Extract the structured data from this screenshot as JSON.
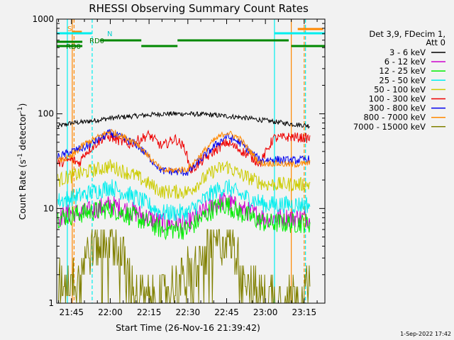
{
  "chart_data": {
    "type": "line",
    "title": "RHESSI Observing Summary Count Rates",
    "xlabel": "Start Time (26-Nov-16 21:39:42)",
    "ylabel": "Count Rate (s⁻¹ detector⁻¹)",
    "ylabel_main": "Count Rate (s",
    "ylabel_sup1": "-1",
    "ylabel_mid": " detector",
    "ylabel_sup2": "-1",
    "ylabel_end": ")",
    "yscale": "log",
    "ylim": [
      1,
      1000
    ],
    "xlim_minutes": [
      -5.7,
      98.0
    ],
    "xticks": [
      {
        "m": 0,
        "label": "21:45"
      },
      {
        "m": 15,
        "label": "22:00"
      },
      {
        "m": 30,
        "label": "22:15"
      },
      {
        "m": 45,
        "label": "22:30"
      },
      {
        "m": 60,
        "label": "22:45"
      },
      {
        "m": 75,
        "label": "23:00"
      },
      {
        "m": 90,
        "label": "23:15"
      }
    ],
    "yticks": [
      {
        "v": 1,
        "label": "1"
      },
      {
        "v": 10,
        "label": "10"
      },
      {
        "v": 100,
        "label": "100"
      },
      {
        "v": 1000,
        "label": "1000"
      }
    ],
    "legend_header": [
      "Det 3,9, FDecim 1,",
      "Att 0"
    ],
    "legend_position": "right",
    "series": [
      {
        "name": "3 - 6 keV",
        "color": "#000000",
        "points": [
          [
            -5,
            74
          ],
          [
            0,
            80
          ],
          [
            5,
            82
          ],
          [
            15,
            90
          ],
          [
            25,
            95
          ],
          [
            35,
            100
          ],
          [
            45,
            100
          ],
          [
            55,
            97
          ],
          [
            65,
            92
          ],
          [
            75,
            85
          ],
          [
            85,
            78
          ],
          [
            92,
            75
          ]
        ]
      },
      {
        "name": "6 - 12 keV",
        "color": "#cc00cc",
        "points": [
          [
            -5,
            8
          ],
          [
            0,
            9
          ],
          [
            5,
            9
          ],
          [
            15,
            11
          ],
          [
            25,
            9
          ],
          [
            35,
            7
          ],
          [
            45,
            7
          ],
          [
            55,
            11
          ],
          [
            60,
            12
          ],
          [
            65,
            10
          ],
          [
            75,
            8
          ],
          [
            92,
            8
          ]
        ]
      },
      {
        "name": "12 - 25 keV",
        "color": "#00ee00",
        "points": [
          [
            -5,
            8
          ],
          [
            0,
            8.5
          ],
          [
            5,
            9
          ],
          [
            15,
            10
          ],
          [
            25,
            8
          ],
          [
            35,
            6
          ],
          [
            45,
            6
          ],
          [
            55,
            10
          ],
          [
            60,
            11
          ],
          [
            65,
            9
          ],
          [
            75,
            7
          ],
          [
            92,
            7
          ]
        ]
      },
      {
        "name": "25 - 50 keV",
        "color": "#00eeee",
        "points": [
          [
            -5,
            12
          ],
          [
            0,
            13
          ],
          [
            5,
            14
          ],
          [
            15,
            17
          ],
          [
            25,
            13
          ],
          [
            35,
            9
          ],
          [
            45,
            9
          ],
          [
            55,
            15
          ],
          [
            60,
            17
          ],
          [
            65,
            14
          ],
          [
            75,
            11
          ],
          [
            92,
            11
          ]
        ]
      },
      {
        "name": "50 - 100 keV",
        "color": "#cccc00",
        "points": [
          [
            -5,
            20
          ],
          [
            0,
            22
          ],
          [
            5,
            24
          ],
          [
            15,
            28
          ],
          [
            25,
            22
          ],
          [
            35,
            15
          ],
          [
            45,
            15
          ],
          [
            55,
            25
          ],
          [
            60,
            28
          ],
          [
            65,
            23
          ],
          [
            75,
            18
          ],
          [
            92,
            18
          ]
        ]
      },
      {
        "name": "100 - 300 keV",
        "color": "#ee0000",
        "points": [
          [
            -5,
            30
          ],
          [
            0,
            33
          ],
          [
            3,
            30
          ],
          [
            5,
            38
          ],
          [
            12,
            55
          ],
          [
            15,
            57
          ],
          [
            22,
            47
          ],
          [
            30,
            60
          ],
          [
            35,
            45
          ],
          [
            40,
            55
          ],
          [
            44,
            43
          ],
          [
            46,
            25
          ],
          [
            55,
            40
          ],
          [
            60,
            50
          ],
          [
            65,
            42
          ],
          [
            73,
            30
          ],
          [
            78,
            55
          ],
          [
            85,
            57
          ],
          [
            92,
            55
          ]
        ]
      },
      {
        "name": "300 - 800 keV",
        "color": "#0000ee",
        "points": [
          [
            -5,
            35
          ],
          [
            0,
            40
          ],
          [
            5,
            44
          ],
          [
            15,
            63
          ],
          [
            25,
            48
          ],
          [
            35,
            25
          ],
          [
            45,
            24
          ],
          [
            55,
            45
          ],
          [
            60,
            58
          ],
          [
            65,
            50
          ],
          [
            73,
            32
          ],
          [
            78,
            33
          ],
          [
            85,
            32
          ],
          [
            92,
            33
          ]
        ]
      },
      {
        "name": "800 - 7000 keV",
        "color": "#ff8800",
        "points": [
          [
            -5,
            32
          ],
          [
            0,
            35
          ],
          [
            5,
            48
          ],
          [
            15,
            66
          ],
          [
            25,
            50
          ],
          [
            35,
            25
          ],
          [
            45,
            26
          ],
          [
            55,
            52
          ],
          [
            60,
            64
          ],
          [
            65,
            55
          ],
          [
            73,
            30
          ],
          [
            78,
            30
          ],
          [
            85,
            29
          ],
          [
            92,
            30
          ]
        ]
      },
      {
        "name": "7000 - 15000 keV",
        "color": "#808000",
        "points": [
          [
            -5,
            1.6
          ],
          [
            0,
            1.8
          ],
          [
            5,
            3
          ],
          [
            10,
            4.5
          ],
          [
            15,
            5
          ],
          [
            20,
            3
          ],
          [
            25,
            1.2
          ],
          [
            35,
            1.2
          ],
          [
            45,
            2
          ],
          [
            55,
            4
          ],
          [
            60,
            5
          ],
          [
            65,
            3
          ],
          [
            70,
            1.4
          ],
          [
            80,
            1.2
          ],
          [
            92,
            1.3
          ]
        ]
      }
    ],
    "flag_lines": [
      {
        "label": "S",
        "color": "#ff8800",
        "segments": [
          [
            0.3,
            4.0
          ]
        ],
        "vlines": [
          0.3,
          1.0,
          85.0,
          90.0
        ],
        "dashed": [
          1.0,
          90.0
        ]
      },
      {
        "label": "N",
        "color": "#00eeee",
        "segments": [
          [
            -5.7,
            7.8
          ],
          [
            78.5,
            98.0
          ]
        ],
        "vlines": [
          -1.6,
          8.0,
          78.5,
          90.5
        ],
        "dashed": [
          8.0,
          90.5
        ]
      },
      {
        "label": "RD0",
        "color": "#008800",
        "segments": [
          [
            -5.7,
            4.2
          ],
          [
            11.0,
            27.0
          ],
          [
            27.0,
            41.0
          ],
          [
            41.0,
            84.0
          ],
          [
            85.0,
            98.0
          ]
        ]
      }
    ],
    "flag_labels": {
      "s": "S",
      "n": "N",
      "rd_top": "RD0",
      "rd_bottom": "RD0"
    }
  },
  "stamp": "1-Sep-2022 17:42"
}
